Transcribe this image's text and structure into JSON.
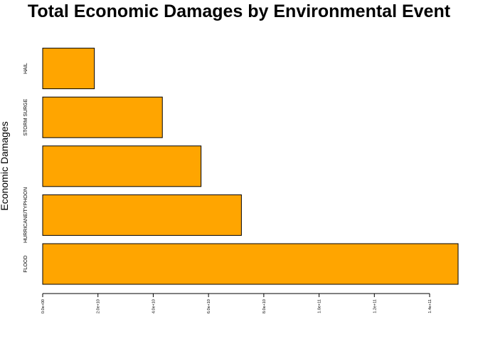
{
  "chart_data": {
    "type": "bar",
    "orientation": "horizontal",
    "title": "Total Economic Damages by Environmental Event",
    "xlabel": "",
    "ylabel": "Economic Damages",
    "categories": [
      "FLOOD",
      "HURRICANE/TYPHOON",
      "",
      "STORM SURGE",
      "HAIL"
    ],
    "values": [
      150300000000,
      71900000000,
      57300000000,
      43300000000,
      18700000000
    ],
    "xlim": [
      0,
      150000000000
    ],
    "x_ticks": [
      0,
      20000000000,
      40000000000,
      60000000000,
      80000000000,
      100000000000,
      120000000000,
      140000000000
    ],
    "x_tick_labels": [
      "0.0e+00",
      "2.0e+10",
      "4.0e+10",
      "6.0e+10",
      "8.0e+10",
      "1.0e+11",
      "1.2e+11",
      "1.4e+11"
    ],
    "grid": false,
    "bar_color": "#FFA500",
    "bar_edge_color": "#000000"
  }
}
